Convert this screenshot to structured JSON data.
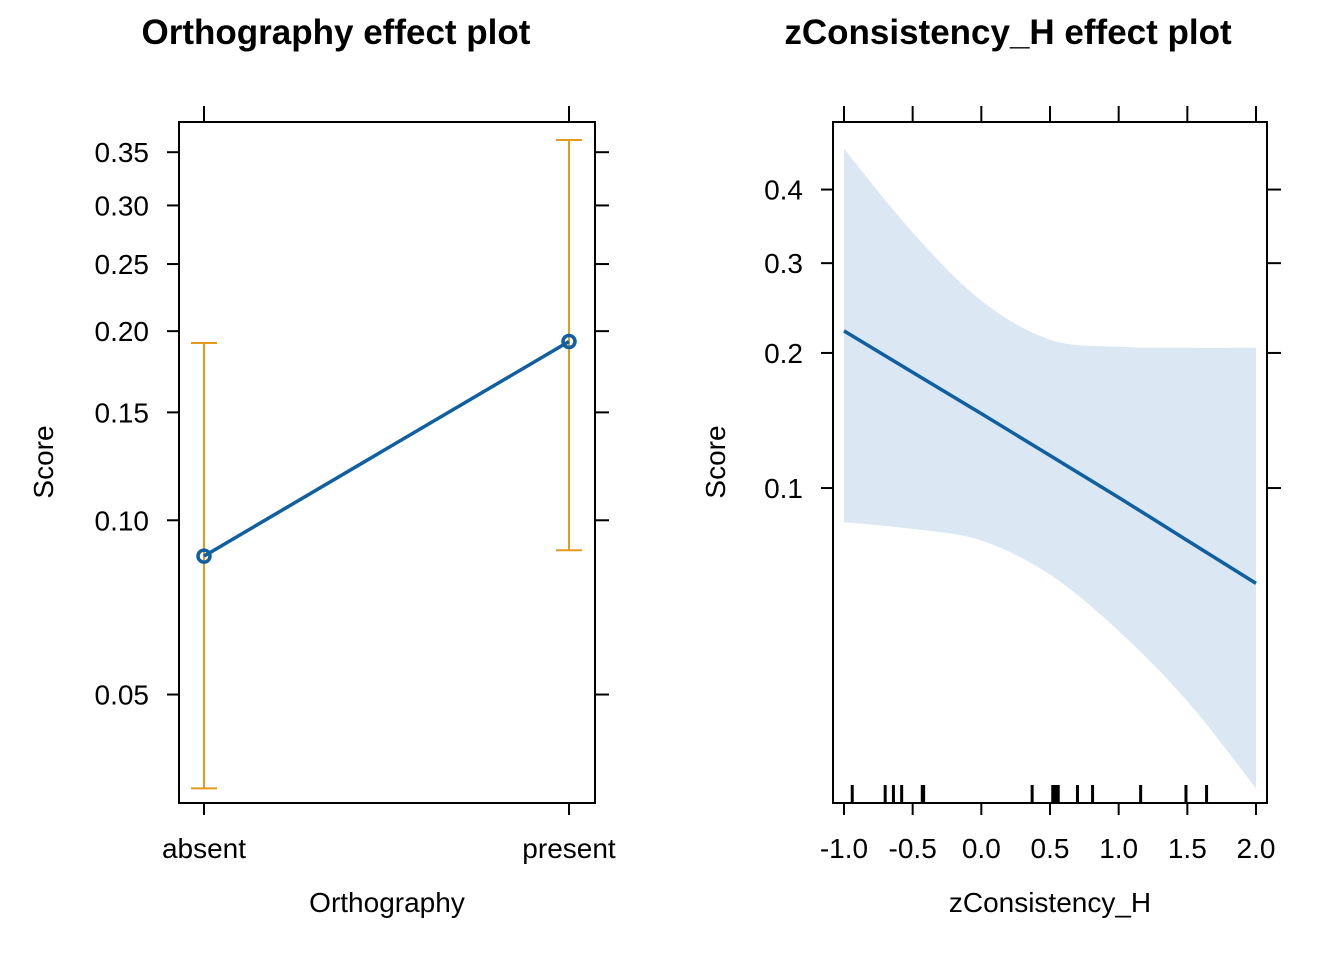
{
  "colors": {
    "line": "#0f5fa3",
    "ci": "#e69a1c",
    "band": "#dbe7f2",
    "axis": "#000000"
  },
  "chart_data": [
    {
      "type": "line",
      "title": "Orthography effect plot",
      "xlabel": "Orthography",
      "ylabel": "Score",
      "y_scale": "logit",
      "categories": [
        "absent",
        "present"
      ],
      "series": [
        {
          "values": [
            0.087,
            0.193
          ],
          "lower": [
            0.034,
            0.089
          ],
          "upper": [
            0.192,
            0.362
          ]
        }
      ],
      "ylim": [
        0.032,
        0.38
      ],
      "yticks": [
        0.05,
        0.1,
        0.15,
        0.2,
        0.25,
        0.3,
        0.35
      ],
      "ytick_labels": [
        "0.05",
        "0.10",
        "0.15",
        "0.20",
        "0.25",
        "0.30",
        "0.35"
      ],
      "grid": false,
      "legend": "none"
    },
    {
      "type": "line",
      "title": "zConsistency_H effect plot",
      "xlabel": "zConsistency_H",
      "ylabel": "Score",
      "y_scale": "logit",
      "x": [
        -1.0,
        -0.5,
        0.0,
        0.5,
        1.0,
        1.5,
        2.0
      ],
      "fit": [
        0.222,
        0.182,
        0.148,
        0.119,
        0.095,
        0.075,
        0.059
      ],
      "lower": [
        0.083,
        0.08,
        0.075,
        0.062,
        0.045,
        0.03,
        0.018
      ],
      "upper": [
        0.46,
        0.34,
        0.255,
        0.213,
        0.206,
        0.205,
        0.205
      ],
      "rug": [
        -0.94,
        -0.7,
        -0.64,
        -0.58,
        -0.43,
        -0.42,
        0.37,
        0.52,
        0.54,
        0.56,
        0.7,
        0.81,
        1.16,
        1.49,
        1.64
      ],
      "xlim": [
        -1.08,
        2.08
      ],
      "ylim": [
        0.0165,
        0.5
      ],
      "xticks": [
        -1.0,
        -0.5,
        0.0,
        0.5,
        1.0,
        1.5,
        2.0
      ],
      "xtick_labels": [
        "-1.0",
        "-0.5",
        "0.0",
        "0.5",
        "1.0",
        "1.5",
        "2.0"
      ],
      "yticks": [
        0.1,
        0.2,
        0.3,
        0.4
      ],
      "ytick_labels": [
        "0.1",
        "0.2",
        "0.3",
        "0.4"
      ],
      "grid": false,
      "legend": "none"
    }
  ]
}
